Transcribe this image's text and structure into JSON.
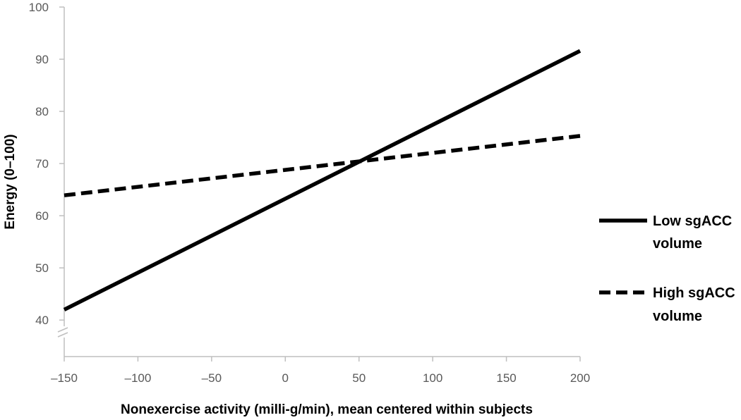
{
  "chart_data": {
    "type": "line",
    "xlabel": "Nonexercise activity (milli-g/min), mean centered within subjects",
    "ylabel": "Energy (0–100)",
    "xlim": [
      -150,
      200
    ],
    "ylim": [
      33,
      100
    ],
    "x_ticks": [
      -150,
      -100,
      -50,
      0,
      50,
      100,
      150,
      200
    ],
    "x_tick_labels": [
      "–150",
      "–100",
      "–50",
      "0",
      "50",
      "100",
      "150",
      "200"
    ],
    "y_ticks": [
      40,
      50,
      60,
      70,
      80,
      90,
      100
    ],
    "y_tick_labels": [
      "40",
      "50",
      "60",
      "70",
      "80",
      "90",
      "100"
    ],
    "y_axis_break": true,
    "grid": false,
    "legend_position": "right",
    "series": [
      {
        "name": "Low sgACC volume",
        "legend_lines": [
          "Low sgACC",
          "volume"
        ],
        "style": "solid",
        "color": "#000000",
        "x": [
          -150,
          200
        ],
        "y": [
          42.0,
          91.6
        ]
      },
      {
        "name": "High sgACC volume",
        "legend_lines": [
          "High sgACC",
          "volume"
        ],
        "style": "dashed",
        "color": "#000000",
        "x": [
          -150,
          200
        ],
        "y": [
          63.9,
          75.3
        ]
      }
    ]
  }
}
